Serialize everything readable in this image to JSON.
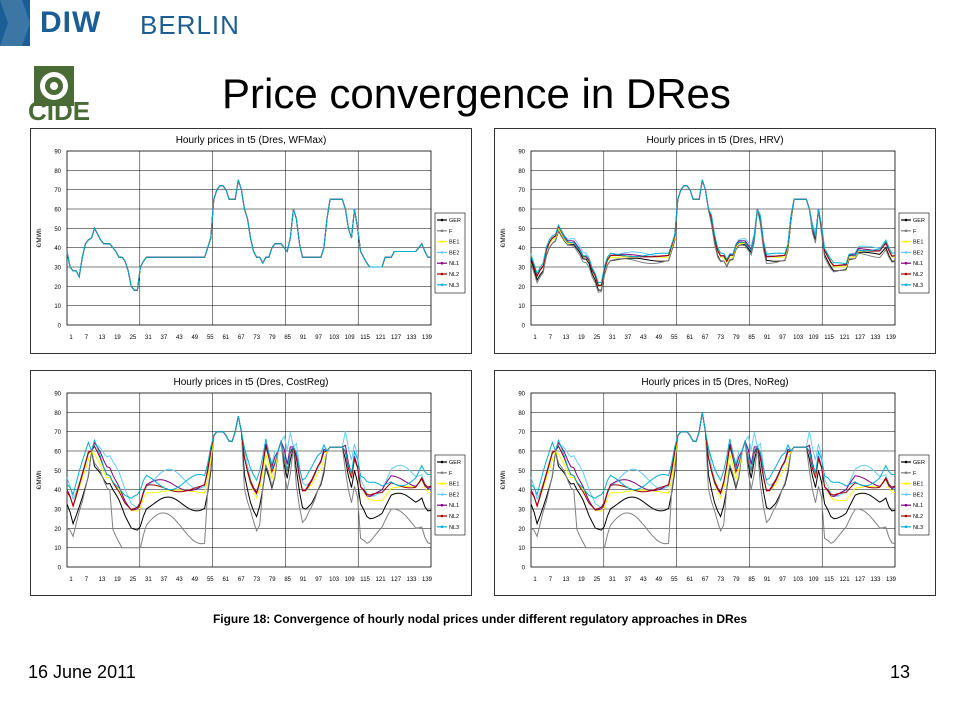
{
  "header": {
    "logo_diw": "DIW",
    "logo_berlin": "BERLIN",
    "logo_cide": "CIDE",
    "title": "Price convergence in DRes"
  },
  "caption": "Figure 18: Convergence of hourly nodal prices under different regulatory approaches in DRes",
  "footer": {
    "date": "16 June 2011",
    "page": "13"
  },
  "colors": {
    "GER": "#000000",
    "F": "#808080",
    "BE1": "#ffff00",
    "BE2": "#66ccff",
    "NL1": "#800080",
    "NL2": "#a00000",
    "NL3": "#00b0d0"
  },
  "chart_data": [
    {
      "type": "line",
      "title": "Hourly prices in t5 (Dres, WFMax)",
      "ylabel": "€/MWh",
      "ylim": [
        0,
        90
      ],
      "yticks": [
        "0",
        "10",
        "20",
        "30",
        "40",
        "50",
        "60",
        "70",
        "80",
        "90"
      ],
      "xticks": [
        "1",
        "7",
        "13",
        "19",
        "25",
        "31",
        "37",
        "43",
        "49",
        "55",
        "61",
        "67",
        "73",
        "79",
        "85",
        "91",
        "97",
        "103",
        "109",
        "115",
        "121",
        "127",
        "133",
        "139"
      ],
      "legend": [
        "GER",
        "F",
        "BE1",
        "BE2",
        "NL1",
        "NL2",
        "NL3"
      ],
      "legend_position": "right",
      "grid": true,
      "series_base": [
        38,
        30,
        28,
        28,
        25,
        35,
        42,
        44,
        45,
        50,
        47,
        44,
        42,
        42,
        42,
        40,
        38,
        35,
        35,
        33,
        28,
        20,
        18,
        18,
        30,
        33,
        35,
        35,
        35,
        35,
        35,
        35,
        35,
        35,
        35,
        35,
        35,
        35,
        35,
        35,
        35,
        35,
        35,
        35,
        35,
        35,
        40,
        45,
        65,
        70,
        72,
        72,
        70,
        65,
        65,
        65,
        75,
        70,
        60,
        55,
        45,
        38,
        35,
        35,
        32,
        35,
        35,
        40,
        42,
        42,
        42,
        40,
        38,
        45,
        60,
        55,
        42,
        35,
        35,
        35,
        35,
        35,
        35,
        35,
        40,
        55,
        65,
        65,
        65,
        65,
        65,
        60,
        50,
        45,
        60,
        50,
        38,
        35,
        32,
        30,
        30,
        30,
        30,
        30,
        35,
        35,
        35,
        38,
        38,
        38,
        38,
        38,
        38,
        38,
        38,
        40,
        42,
        38,
        35,
        35
      ],
      "series_deviation": 0
    },
    {
      "type": "line",
      "title": "Hourly prices in t5 (Dres, HRV)",
      "ylabel": "€/MWh",
      "ylim": [
        0,
        90
      ],
      "yticks": [
        "0",
        "10",
        "20",
        "30",
        "40",
        "50",
        "60",
        "70",
        "80",
        "90"
      ],
      "xticks": [
        "1",
        "7",
        "13",
        "19",
        "25",
        "31",
        "37",
        "43",
        "49",
        "55",
        "61",
        "67",
        "73",
        "79",
        "85",
        "91",
        "97",
        "103",
        "109",
        "115",
        "121",
        "127",
        "133",
        "139"
      ],
      "legend": [
        "GER",
        "F",
        "BE1",
        "BE2",
        "NL1",
        "NL2",
        "NL3"
      ],
      "legend_position": "right",
      "grid": true,
      "series_base": [
        35,
        30,
        25,
        28,
        30,
        38,
        42,
        44,
        45,
        50,
        47,
        44,
        42,
        42,
        42,
        40,
        38,
        35,
        35,
        33,
        28,
        25,
        20,
        20,
        28,
        33,
        35,
        35,
        35,
        35,
        35,
        35,
        35,
        35,
        35,
        35,
        35,
        35,
        35,
        35,
        35,
        35,
        35,
        35,
        35,
        35,
        40,
        45,
        65,
        70,
        72,
        72,
        70,
        65,
        65,
        65,
        75,
        70,
        60,
        55,
        45,
        38,
        35,
        35,
        32,
        35,
        35,
        40,
        42,
        42,
        42,
        40,
        38,
        45,
        60,
        55,
        42,
        35,
        35,
        35,
        35,
        35,
        35,
        35,
        40,
        55,
        65,
        65,
        65,
        65,
        65,
        60,
        50,
        45,
        60,
        50,
        38,
        35,
        32,
        30,
        30,
        30,
        30,
        30,
        35,
        35,
        35,
        38,
        38,
        38,
        38,
        38,
        38,
        38,
        38,
        40,
        42,
        38,
        35,
        35
      ],
      "series_deviation": 2
    },
    {
      "type": "line",
      "title": "Hourly prices in t5 (Dres, CostReg)",
      "ylabel": "€/MWh",
      "ylim": [
        0,
        90
      ],
      "yticks": [
        "0",
        "10",
        "20",
        "30",
        "40",
        "50",
        "60",
        "70",
        "80",
        "90"
      ],
      "xticks": [
        "1",
        "7",
        "13",
        "19",
        "25",
        "31",
        "37",
        "43",
        "49",
        "55",
        "61",
        "67",
        "73",
        "79",
        "85",
        "91",
        "97",
        "103",
        "109",
        "115",
        "121",
        "127",
        "133",
        "139"
      ],
      "legend": [
        "GER",
        "F",
        "BE1",
        "BE2",
        "NL1",
        "NL2",
        "NL3"
      ],
      "legend_position": "right",
      "grid": true,
      "series_base": [
        38,
        35,
        30,
        35,
        40,
        45,
        50,
        55,
        60,
        58,
        55,
        52,
        48,
        45,
        45,
        42,
        40,
        38,
        35,
        32,
        30,
        28,
        28,
        28,
        30,
        35,
        38,
        38,
        38,
        38,
        38,
        38,
        38,
        38,
        38,
        38,
        38,
        38,
        38,
        38,
        38,
        38,
        38,
        38,
        38,
        38,
        45,
        55,
        68,
        70,
        70,
        70,
        68,
        65,
        65,
        70,
        78,
        70,
        55,
        48,
        42,
        38,
        35,
        40,
        48,
        58,
        52,
        45,
        50,
        60,
        65,
        55,
        48,
        58,
        62,
        55,
        45,
        38,
        38,
        40,
        42,
        45,
        48,
        50,
        55,
        60,
        62,
        62,
        62,
        62,
        62,
        58,
        50,
        45,
        55,
        50,
        40,
        38,
        35,
        34,
        34,
        34,
        34,
        34,
        36,
        38,
        40,
        40,
        40,
        40,
        40,
        40,
        40,
        40,
        40,
        42,
        44,
        40,
        38,
        38
      ],
      "series_deviation": 9
    },
    {
      "type": "line",
      "title": "Hourly prices in t5 (Dres, NoReg)",
      "ylabel": "€/MWh",
      "ylim": [
        0,
        90
      ],
      "yticks": [
        "0",
        "10",
        "20",
        "30",
        "40",
        "50",
        "60",
        "70",
        "80",
        "90"
      ],
      "xticks": [
        "1",
        "7",
        "13",
        "19",
        "25",
        "31",
        "37",
        "43",
        "49",
        "55",
        "61",
        "67",
        "73",
        "79",
        "85",
        "91",
        "97",
        "103",
        "109",
        "115",
        "121",
        "127",
        "133",
        "139"
      ],
      "legend": [
        "GER",
        "F",
        "BE1",
        "BE2",
        "NL1",
        "NL2",
        "NL3"
      ],
      "legend_position": "right",
      "grid": true,
      "series_base": [
        38,
        35,
        30,
        35,
        40,
        45,
        50,
        55,
        60,
        58,
        55,
        52,
        48,
        45,
        45,
        42,
        40,
        38,
        35,
        32,
        30,
        28,
        28,
        28,
        30,
        35,
        38,
        38,
        38,
        38,
        38,
        38,
        38,
        38,
        38,
        38,
        38,
        38,
        38,
        38,
        38,
        38,
        38,
        38,
        38,
        38,
        45,
        55,
        68,
        70,
        70,
        70,
        68,
        65,
        65,
        70,
        80,
        70,
        55,
        48,
        42,
        38,
        35,
        40,
        48,
        58,
        52,
        45,
        50,
        60,
        65,
        55,
        48,
        58,
        62,
        55,
        45,
        38,
        38,
        40,
        42,
        45,
        48,
        50,
        55,
        60,
        62,
        62,
        62,
        62,
        62,
        58,
        50,
        45,
        55,
        50,
        40,
        38,
        35,
        34,
        34,
        34,
        34,
        34,
        36,
        38,
        40,
        40,
        40,
        40,
        40,
        40,
        40,
        40,
        40,
        42,
        44,
        40,
        38,
        38
      ],
      "series_deviation": 9
    }
  ]
}
